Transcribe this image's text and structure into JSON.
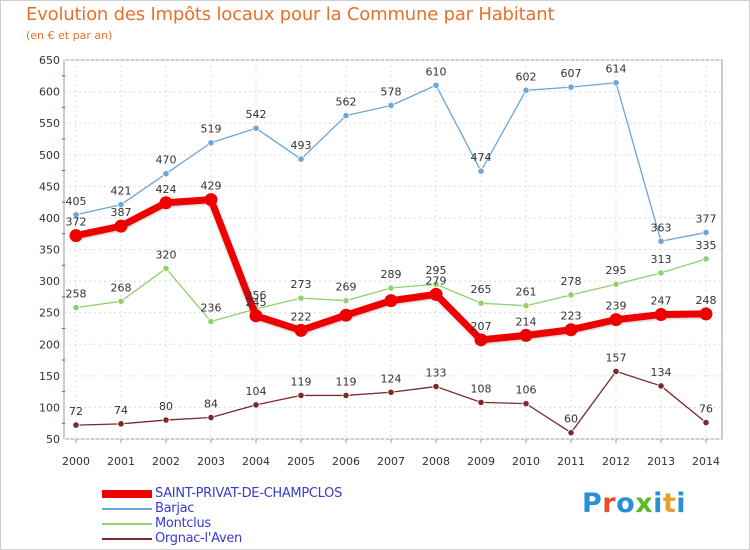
{
  "header": {
    "title": "Evolution des Impôts locaux pour la Commune par Habitant",
    "subtitle": "(en € et par an)"
  },
  "logo": {
    "text": "Proxiti",
    "letter_colors": [
      "#2a8fd8",
      "#e8502a",
      "#2a8fd8",
      "#5fb82c",
      "#2a8fd8",
      "#e8a02a",
      "#2a8fd8"
    ]
  },
  "chart_data": {
    "type": "line",
    "x": [
      "2000",
      "2001",
      "2002",
      "2003",
      "2004",
      "2005",
      "2006",
      "2007",
      "2008",
      "2009",
      "2010",
      "2011",
      "2012",
      "2013",
      "2014"
    ],
    "y_ticks": [
      "50",
      "100",
      "150",
      "200",
      "250",
      "300",
      "350",
      "400",
      "450",
      "500",
      "550",
      "600",
      "650"
    ],
    "ylim": [
      50,
      650
    ],
    "grid": true,
    "legend_position": "bottom-left",
    "series": [
      {
        "name": "SAINT-PRIVAT-DE-CHAMPCLOS",
        "color": "#ee0000",
        "values": [
          372,
          387,
          424,
          429,
          245,
          222,
          246,
          269,
          279,
          207,
          214,
          223,
          239,
          247,
          248
        ],
        "labels": [
          "372",
          "387",
          "424",
          "429",
          "245",
          "222",
          "",
          "",
          "279",
          "207",
          "214",
          "223",
          "239",
          "247",
          "248"
        ]
      },
      {
        "name": "Barjac",
        "color": "#6aa6d8",
        "values": [
          405,
          421,
          470,
          519,
          542,
          493,
          562,
          578,
          610,
          474,
          602,
          607,
          614,
          363,
          377
        ],
        "labels": [
          "405",
          "421",
          "470",
          "519",
          "542",
          "493",
          "562",
          "578",
          "610",
          "474",
          "602",
          "607",
          "614",
          "363",
          "377"
        ]
      },
      {
        "name": "Montclus",
        "color": "#8fd16a",
        "values": [
          258,
          268,
          320,
          236,
          256,
          273,
          269,
          289,
          295,
          265,
          261,
          278,
          295,
          313,
          335
        ],
        "labels": [
          "258",
          "268",
          "320",
          "236",
          "256",
          "273",
          "269",
          "289",
          "295",
          "265",
          "261",
          "278",
          "295",
          "313",
          "335"
        ]
      },
      {
        "name": "Orgnac-l'Aven",
        "color": "#7a2a2a",
        "values": [
          72,
          74,
          80,
          84,
          104,
          119,
          119,
          124,
          133,
          108,
          106,
          60,
          157,
          134,
          76
        ],
        "labels": [
          "72",
          "74",
          "80",
          "84",
          "104",
          "119",
          "119",
          "124",
          "133",
          "108",
          "106",
          "60",
          "157",
          "134",
          "76"
        ]
      }
    ]
  }
}
